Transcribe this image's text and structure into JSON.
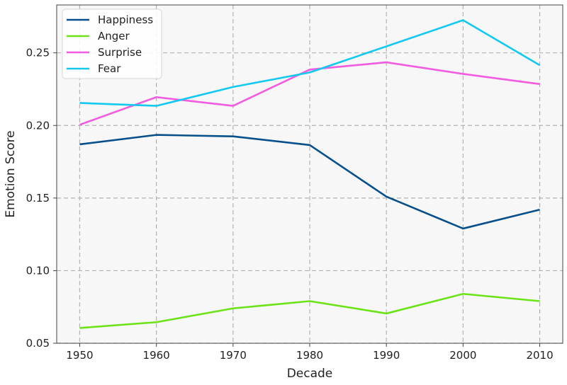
{
  "chart_data": {
    "type": "line",
    "xlabel": "Decade",
    "ylabel": "Emotion Score",
    "x": [
      "1950",
      "1960",
      "1970",
      "1980",
      "1990",
      "2000",
      "2010"
    ],
    "xlim": [
      1947,
      2013
    ],
    "ylim": [
      0.05,
      0.283
    ],
    "yticks": [
      "0.05",
      "0.10",
      "0.15",
      "0.20",
      "0.25"
    ],
    "grid": true,
    "legend_position": "top-left",
    "series": [
      {
        "name": "Happiness",
        "color": "#08508b",
        "values": [
          0.187,
          0.1935,
          0.1925,
          0.1865,
          0.151,
          0.129,
          0.142
        ]
      },
      {
        "name": "Anger",
        "color": "#6be316",
        "values": [
          0.0605,
          0.0645,
          0.074,
          0.079,
          0.0705,
          0.084,
          0.079
        ]
      },
      {
        "name": "Surprise",
        "color": "#f25ce0",
        "values": [
          0.2005,
          0.2195,
          0.2135,
          0.2385,
          0.2435,
          0.2355,
          0.2285
        ]
      },
      {
        "name": "Fear",
        "color": "#13c9f0",
        "values": [
          0.2155,
          0.2135,
          0.2265,
          0.2365,
          0.2545,
          0.2725,
          0.2415
        ]
      }
    ]
  }
}
